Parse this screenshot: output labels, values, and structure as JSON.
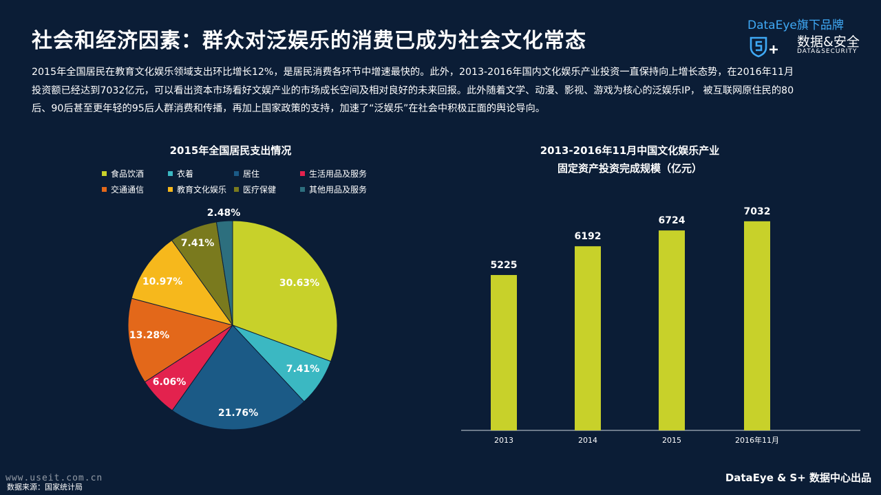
{
  "header": {
    "title": "社会和经济因素：群众对泛娱乐的消费已成为社会文化常态",
    "intro": "2015年全国居民在教育文化娱乐领域支出环比增长12%，是居民消费各环节中增速最快的。此外，2013-2016年国内文化娱乐产业投资一直保持向上增长态势，在2016年11月投资额已经达到7032亿元，可以看出资本市场看好文娱产业的市场成长空间及相对良好的未来回报。此外随着文学、动漫、影视、游戏为核心的泛娱乐IP， 被互联网原住民的80后、90后甚至更年轻的95后人群消费和传播，再加上国家政策的支持，加速了“泛娱乐”在社会中积极正面的舆论导向。"
  },
  "brand": {
    "top_latin": "DataEye",
    "top_cn": "旗下品牌",
    "name_cn": "数据&安全",
    "name_en": "DATA&SECURITY"
  },
  "footer": {
    "source": "数据来源：国家统计局",
    "credit": "DataEye & S+ 数据中心出品",
    "watermark": "www.useit.com.cn"
  },
  "colors": {
    "background": "#0b1d36",
    "bar": "#c8d12a",
    "brand_blue": "#3fa9f5"
  },
  "chart_data": [
    {
      "type": "pie",
      "title": "2015年全国居民支出情况",
      "legend_position": "top",
      "categories": [
        "食品饮酒",
        "衣着",
        "居住",
        "生活用品及服务",
        "交通通信",
        "教育文化娱乐",
        "医疗保健",
        "其他用品及服务"
      ],
      "values": [
        30.63,
        7.41,
        21.76,
        6.06,
        13.28,
        10.97,
        7.41,
        2.48
      ],
      "labels": [
        "30.63%",
        "7.41%",
        "21.76%",
        "6.06%",
        "13.28%",
        "10.97%",
        "7.41%",
        "2.48%"
      ],
      "colors": [
        "#c8d12a",
        "#3bb8c2",
        "#1b5a86",
        "#e3224e",
        "#e3681a",
        "#f6b81c",
        "#7a7a1e",
        "#2d6f7e"
      ]
    },
    {
      "type": "bar",
      "title": "2013-2016年11月中国文化娱乐产业",
      "subtitle": "固定资产投资完成规模（亿元）",
      "categories": [
        "2013",
        "2014",
        "2015",
        "2016年11月"
      ],
      "values": [
        5225,
        6192,
        6724,
        7032
      ],
      "value_labels": [
        "5225",
        "6192",
        "6724",
        "7032"
      ],
      "ylim": [
        0,
        8000
      ],
      "grid": false
    }
  ]
}
